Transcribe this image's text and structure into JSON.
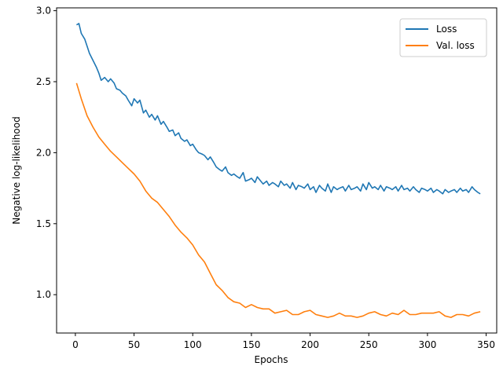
{
  "chart_data": {
    "type": "line",
    "title": "",
    "xlabel": "Epochs",
    "ylabel": "Negative log-likelihood",
    "xlim": [
      -16,
      359
    ],
    "ylim": [
      0.73,
      3.02
    ],
    "xticks": [
      0,
      50,
      100,
      150,
      200,
      250,
      300,
      350
    ],
    "yticks": [
      1.0,
      1.5,
      2.0,
      2.5,
      3.0
    ],
    "xtick_labels": [
      "0",
      "50",
      "100",
      "150",
      "200",
      "250",
      "300",
      "350"
    ],
    "ytick_labels": [
      "1.0",
      "1.5",
      "2.0",
      "2.5",
      "3.0"
    ],
    "grid": false,
    "legend_position": "top-right",
    "series": [
      {
        "name": "Loss",
        "color": "#1f77b4",
        "x": [
          1,
          3,
          5,
          8,
          10,
          12,
          15,
          18,
          20,
          22,
          25,
          28,
          30,
          33,
          35,
          38,
          40,
          43,
          45,
          48,
          50,
          53,
          55,
          58,
          60,
          63,
          65,
          68,
          70,
          73,
          75,
          78,
          80,
          83,
          85,
          88,
          90,
          93,
          95,
          98,
          100,
          103,
          105,
          108,
          110,
          113,
          115,
          118,
          120,
          123,
          125,
          128,
          130,
          133,
          135,
          138,
          140,
          143,
          145,
          148,
          150,
          153,
          155,
          158,
          160,
          163,
          165,
          168,
          170,
          173,
          175,
          178,
          180,
          183,
          185,
          188,
          190,
          193,
          195,
          198,
          200,
          203,
          205,
          208,
          210,
          213,
          215,
          218,
          220,
          223,
          225,
          228,
          230,
          233,
          235,
          238,
          240,
          243,
          245,
          248,
          250,
          253,
          255,
          258,
          260,
          263,
          265,
          268,
          270,
          273,
          275,
          278,
          280,
          283,
          285,
          288,
          290,
          293,
          295,
          298,
          300,
          303,
          305,
          308,
          310,
          313,
          315,
          318,
          320,
          323,
          325,
          328,
          330,
          333,
          335,
          338,
          340,
          343,
          345
        ],
        "y": [
          2.9,
          2.91,
          2.84,
          2.8,
          2.75,
          2.7,
          2.65,
          2.6,
          2.56,
          2.51,
          2.53,
          2.5,
          2.52,
          2.49,
          2.45,
          2.44,
          2.42,
          2.4,
          2.37,
          2.33,
          2.38,
          2.35,
          2.37,
          2.28,
          2.3,
          2.25,
          2.27,
          2.23,
          2.26,
          2.2,
          2.22,
          2.18,
          2.15,
          2.16,
          2.12,
          2.14,
          2.1,
          2.08,
          2.09,
          2.05,
          2.06,
          2.02,
          2.0,
          1.99,
          1.98,
          1.95,
          1.97,
          1.93,
          1.9,
          1.88,
          1.87,
          1.9,
          1.86,
          1.84,
          1.85,
          1.83,
          1.82,
          1.86,
          1.8,
          1.81,
          1.82,
          1.79,
          1.83,
          1.8,
          1.78,
          1.8,
          1.77,
          1.79,
          1.78,
          1.76,
          1.8,
          1.77,
          1.78,
          1.75,
          1.79,
          1.74,
          1.77,
          1.76,
          1.75,
          1.78,
          1.74,
          1.76,
          1.72,
          1.77,
          1.75,
          1.73,
          1.78,
          1.72,
          1.76,
          1.74,
          1.75,
          1.76,
          1.73,
          1.77,
          1.74,
          1.75,
          1.76,
          1.73,
          1.78,
          1.74,
          1.79,
          1.75,
          1.76,
          1.74,
          1.77,
          1.73,
          1.76,
          1.75,
          1.74,
          1.76,
          1.73,
          1.77,
          1.74,
          1.75,
          1.73,
          1.76,
          1.74,
          1.72,
          1.75,
          1.74,
          1.73,
          1.75,
          1.72,
          1.74,
          1.73,
          1.71,
          1.74,
          1.72,
          1.73,
          1.74,
          1.72,
          1.75,
          1.73,
          1.74,
          1.72,
          1.76,
          1.74,
          1.72,
          1.71
        ]
      },
      {
        "name": "Val. loss",
        "color": "#ff7f0e",
        "x": [
          1,
          5,
          10,
          15,
          20,
          25,
          30,
          35,
          40,
          45,
          50,
          55,
          60,
          65,
          70,
          75,
          80,
          85,
          90,
          95,
          100,
          105,
          110,
          115,
          120,
          125,
          130,
          135,
          140,
          145,
          150,
          155,
          160,
          165,
          170,
          175,
          180,
          185,
          190,
          195,
          200,
          205,
          210,
          215,
          220,
          225,
          230,
          235,
          240,
          245,
          250,
          255,
          260,
          265,
          270,
          275,
          280,
          285,
          290,
          295,
          300,
          305,
          310,
          315,
          320,
          325,
          330,
          335,
          340,
          345
        ],
        "y": [
          2.49,
          2.38,
          2.26,
          2.18,
          2.11,
          2.06,
          2.01,
          1.97,
          1.93,
          1.89,
          1.85,
          1.8,
          1.73,
          1.68,
          1.65,
          1.6,
          1.55,
          1.49,
          1.44,
          1.4,
          1.35,
          1.28,
          1.23,
          1.15,
          1.07,
          1.03,
          0.98,
          0.95,
          0.94,
          0.91,
          0.93,
          0.91,
          0.9,
          0.9,
          0.87,
          0.88,
          0.89,
          0.86,
          0.86,
          0.88,
          0.89,
          0.86,
          0.85,
          0.84,
          0.85,
          0.87,
          0.85,
          0.85,
          0.84,
          0.85,
          0.87,
          0.88,
          0.86,
          0.85,
          0.87,
          0.86,
          0.89,
          0.86,
          0.86,
          0.87,
          0.87,
          0.87,
          0.88,
          0.85,
          0.84,
          0.86,
          0.86,
          0.85,
          0.87,
          0.88
        ]
      }
    ]
  }
}
